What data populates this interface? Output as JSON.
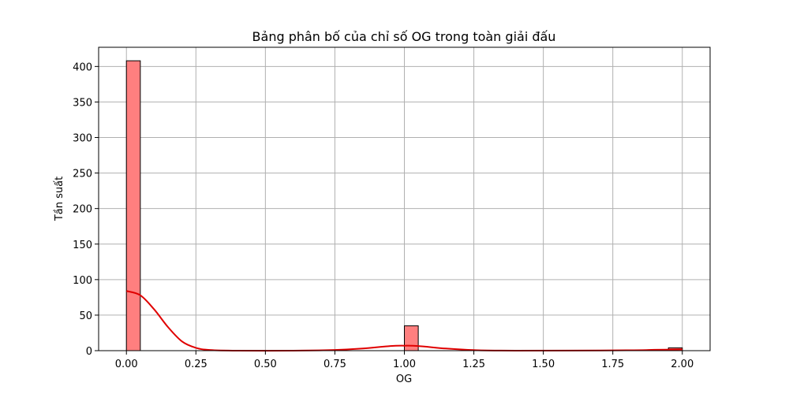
{
  "chart_data": {
    "type": "bar",
    "title": "Bảng phân bố của chỉ số OG trong toàn giải đấu",
    "xlabel": "OG",
    "ylabel": "Tần suất",
    "xlim": [
      -0.1,
      2.1
    ],
    "ylim": [
      0,
      427
    ],
    "grid": true,
    "xticks": [
      0.0,
      0.25,
      0.5,
      0.75,
      1.0,
      1.25,
      1.5,
      1.75,
      2.0
    ],
    "xtick_labels": [
      "0.00",
      "0.25",
      "0.50",
      "0.75",
      "1.00",
      "1.25",
      "1.50",
      "1.75",
      "2.00"
    ],
    "yticks": [
      0,
      50,
      100,
      150,
      200,
      250,
      300,
      350,
      400
    ],
    "ytick_labels": [
      "0",
      "50",
      "100",
      "150",
      "200",
      "250",
      "300",
      "350",
      "400"
    ],
    "bin_width": 0.05,
    "bars": [
      {
        "x": 0.0,
        "value": 408
      },
      {
        "x": 1.0,
        "value": 35
      },
      {
        "x": 1.95,
        "value": 4
      }
    ],
    "kde": [
      {
        "x": 0.0,
        "y": 84
      },
      {
        "x": 0.05,
        "y": 78
      },
      {
        "x": 0.1,
        "y": 58
      },
      {
        "x": 0.15,
        "y": 33
      },
      {
        "x": 0.2,
        "y": 13
      },
      {
        "x": 0.25,
        "y": 4
      },
      {
        "x": 0.3,
        "y": 1
      },
      {
        "x": 0.4,
        "y": 0
      },
      {
        "x": 0.6,
        "y": 0
      },
      {
        "x": 0.75,
        "y": 1
      },
      {
        "x": 0.85,
        "y": 3
      },
      {
        "x": 0.95,
        "y": 6.5
      },
      {
        "x": 1.0,
        "y": 7
      },
      {
        "x": 1.05,
        "y": 6.5
      },
      {
        "x": 1.15,
        "y": 3
      },
      {
        "x": 1.25,
        "y": 0.8
      },
      {
        "x": 1.4,
        "y": 0
      },
      {
        "x": 1.8,
        "y": 0.5
      },
      {
        "x": 1.9,
        "y": 1.2
      },
      {
        "x": 2.0,
        "y": 1.8
      }
    ],
    "colors": {
      "bar_fill": "#ff7f7f",
      "bar_edge": "#000000",
      "kde_line": "#e00000",
      "grid": "#b0b0b0"
    }
  }
}
